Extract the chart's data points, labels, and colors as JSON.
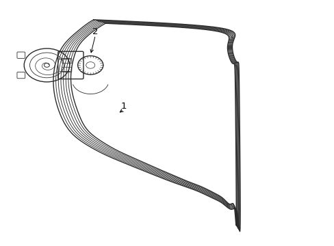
{
  "background_color": "#ffffff",
  "line_color": "#2a2a2a",
  "label_color": "#000000",
  "num_ribs": 6,
  "label1_text": "1",
  "label2_text": "2"
}
